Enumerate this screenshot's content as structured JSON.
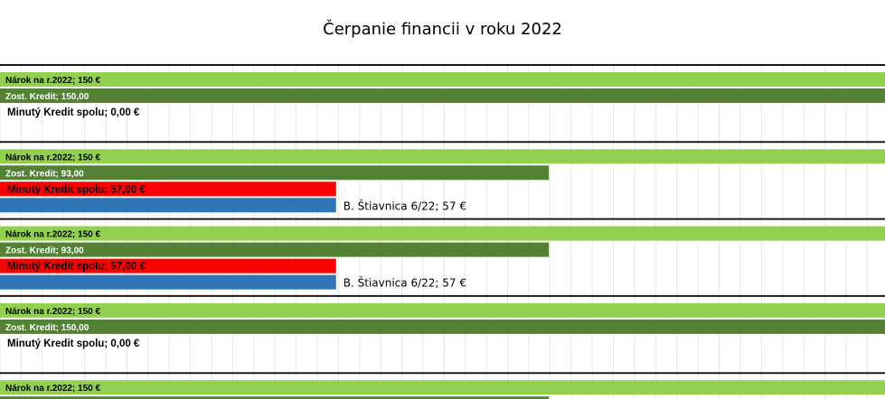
{
  "chart_data": {
    "type": "bar",
    "orientation": "horizontal",
    "title": "Čerpanie financii v roku 2022",
    "xlim": [
      0,
      237
    ],
    "grid": true,
    "legend": "none",
    "colors": {
      "narok": "#92D050",
      "zost": "#548235",
      "minuty": "#FF0000",
      "usage": "#2E75B6"
    },
    "groups": [
      {
        "narok_label": "Nárok na r.2022; 150 €",
        "narok_value": 237,
        "zost_label": "Zost. Kredit; 150,00",
        "zost_value": 237,
        "minuty_label": "Minutý Kredit spolu;  0,00 €",
        "minuty_value": 0,
        "usage_label": "",
        "usage_value": 0
      },
      {
        "narok_label": "Nárok na r.2022; 150 €",
        "narok_value": 237,
        "zost_label": "Zost. Kredit; 93,00",
        "zost_value": 147,
        "minuty_label": "Minutý Kredit spolu;  57,00 €",
        "minuty_value": 90,
        "usage_label": "B. Štiavnica 6/22; 57 €",
        "usage_value": 90
      },
      {
        "narok_label": "Nárok na r.2022; 150 €",
        "narok_value": 237,
        "zost_label": "Zost. Kredit; 93,00",
        "zost_value": 147,
        "minuty_label": "Minutý Kredit spolu;  57,00 €",
        "minuty_value": 90,
        "usage_label": "B. Štiavnica 6/22; 57 €",
        "usage_value": 90
      },
      {
        "narok_label": "Nárok na r.2022; 150 €",
        "narok_value": 237,
        "zost_label": "Zost. Kredit; 150,00",
        "zost_value": 237,
        "minuty_label": "Minutý Kredit spolu;  0,00 €",
        "minuty_value": 0,
        "usage_label": "",
        "usage_value": 0
      },
      {
        "narok_label": "Nárok na r.2022; 150 €",
        "narok_value": 237,
        "zost_label": "",
        "zost_value": 147,
        "minuty_label": "",
        "minuty_value": 0,
        "usage_label": "",
        "usage_value": 0
      }
    ]
  }
}
